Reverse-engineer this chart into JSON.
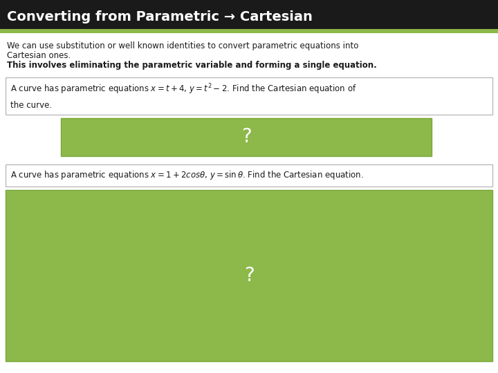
{
  "title": "Converting from Parametric → Cartesian",
  "title_bg": "#1a1a1a",
  "title_color": "#ffffff",
  "title_stripe_color": "#8db84a",
  "body_bg": "#f0f0f0",
  "intro_line1": "We can use substitution or well known identities to convert parametric equations into",
  "intro_line2": "Cartesian ones.",
  "intro_bold": "This involves eliminating the parametric variable and forming a single equation.",
  "box1_text": "A curve has parametric equations $x = t + 4$, $y = t^{2} - 2$. Find the Cartesian equation of\nthe curve.",
  "box2_text": "A curve has parametric equations $x = 1 + 2cos\\theta$, $y = \\sin\\theta$. Find the Cartesian equation.",
  "green_color": "#8db84a",
  "green_border": "#7aa83a",
  "question_mark_color": "#ffffff",
  "box_border_color": "#bbbbbb",
  "box_bg": "#ffffff",
  "text_color": "#1a1a1a",
  "font_size_title": 14,
  "font_size_body": 8.5,
  "font_size_q": 20
}
